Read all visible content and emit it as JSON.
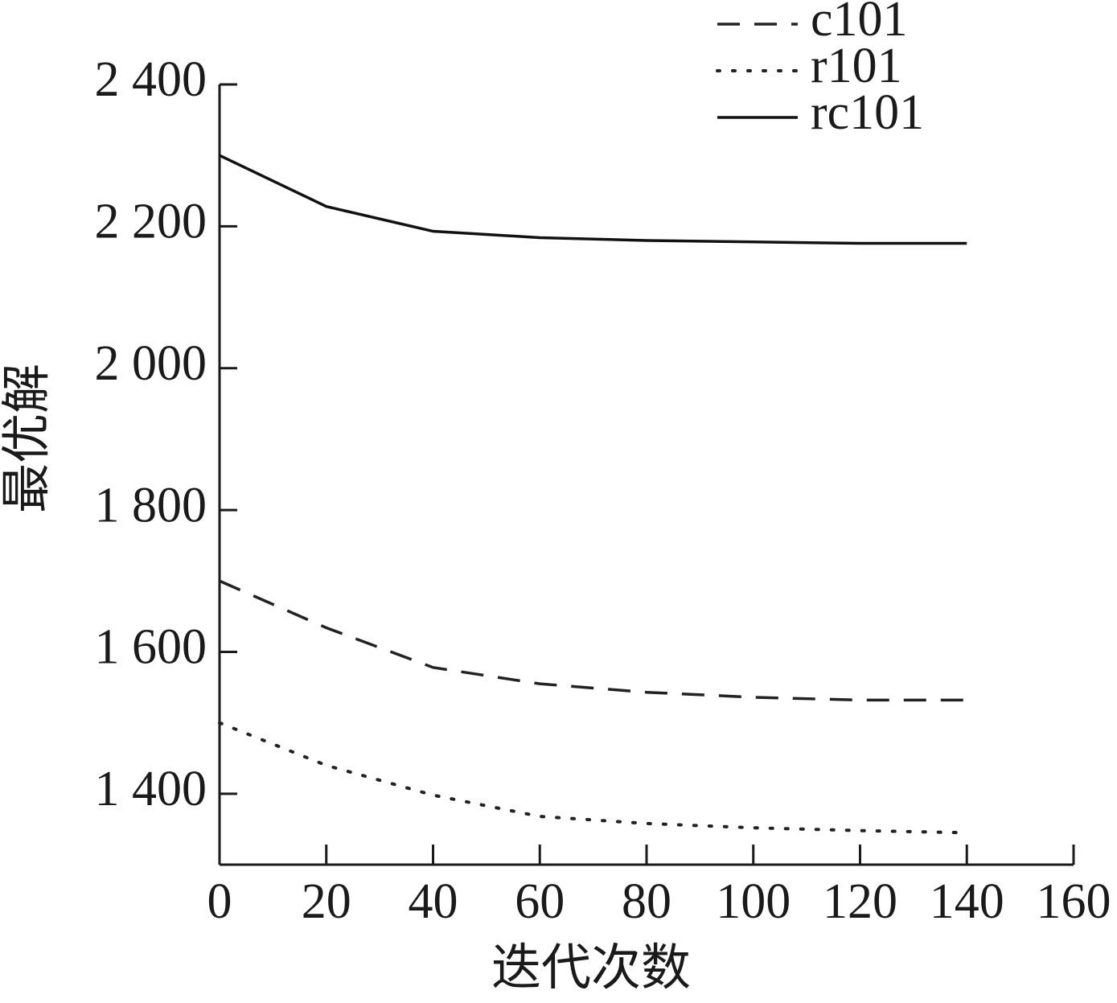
{
  "chart_data": {
    "type": "line",
    "x_label": "迭代次数",
    "y_label": "最优解",
    "x": [
      0,
      20,
      40,
      60,
      80,
      100,
      120,
      140
    ],
    "series": [
      {
        "name": "c101",
        "color": "#222222",
        "style": "dashed",
        "values": [
          1700,
          1634,
          1578,
          1555,
          1543,
          1536,
          1532,
          1532
        ]
      },
      {
        "name": "r101",
        "color": "#222222",
        "style": "dotted",
        "values": [
          1500,
          1440,
          1398,
          1368,
          1358,
          1352,
          1348,
          1345
        ]
      },
      {
        "name": "rc101",
        "color": "#111111",
        "style": "solid",
        "values": [
          2300,
          2228,
          2193,
          2184,
          2180,
          2178,
          2176,
          2176
        ]
      }
    ],
    "xlim": [
      0,
      160
    ],
    "xticks": [
      0,
      20,
      40,
      60,
      80,
      100,
      120,
      140,
      160
    ],
    "ylim": [
      1300,
      2400
    ],
    "yticks": [
      {
        "value": 1400,
        "label": "1 400"
      },
      {
        "value": 1600,
        "label": "1 600"
      },
      {
        "value": 1800,
        "label": "1 800"
      },
      {
        "value": 2000,
        "label": "2 000"
      },
      {
        "value": 2200,
        "label": "2 200"
      },
      {
        "value": 2400,
        "label": "2 400"
      }
    ],
    "grid": false,
    "legend": "upper right"
  }
}
